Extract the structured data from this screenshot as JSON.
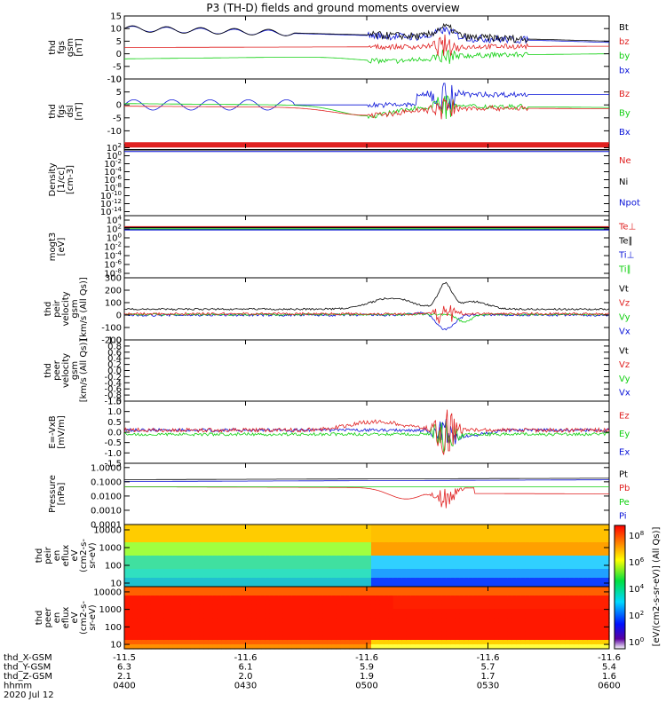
{
  "title": "P3 (TH-D) fields and ground moments overview",
  "colors": {
    "black": "#000000",
    "red": "#e02020",
    "green": "#10d010",
    "blue": "#0a14d8"
  },
  "panels": [
    {
      "ylabel": [
        "thd",
        "fgs",
        "gsm",
        "[nT]"
      ],
      "type": "line",
      "ylim": [
        -10,
        15
      ],
      "ticks": [
        "15",
        "10",
        "5",
        "0",
        "-5",
        "-10"
      ],
      "tickvals": [
        15,
        10,
        5,
        0,
        -5,
        -10
      ],
      "legend": [
        {
          "name": "Bt",
          "color": "black"
        },
        {
          "name": "bz",
          "color": "red"
        },
        {
          "name": "by",
          "color": "green"
        },
        {
          "name": "bx",
          "color": "blue"
        }
      ]
    },
    {
      "ylabel": [
        "thd",
        "fgs",
        "dsl",
        "[nT]"
      ],
      "type": "line",
      "ylim": [
        -15,
        10
      ],
      "ticks": [
        "10",
        "5",
        "0",
        "-5",
        "-10"
      ],
      "tickvals": [
        10,
        5,
        0,
        -5,
        -10
      ],
      "legend": [
        {
          "name": "Bz",
          "color": "red"
        },
        {
          "name": "By",
          "color": "green"
        },
        {
          "name": "Bx",
          "color": "blue"
        }
      ]
    },
    {
      "ylabel": [
        "Density",
        "[1/cc]",
        "[cm-3]"
      ],
      "type": "log",
      "ylim": [
        -15,
        3
      ],
      "ticks": [
        "10^2",
        "10^0",
        "10^-2",
        "10^-4",
        "10^-6",
        "10^-8",
        "10^-10",
        "10^-12",
        "10^-14"
      ],
      "tickvals": [
        2,
        0,
        -2,
        -4,
        -6,
        -8,
        -10,
        -12,
        -14
      ],
      "legend": [
        {
          "name": "Ne",
          "color": "red"
        },
        {
          "name": "Ni",
          "color": "black"
        },
        {
          "name": "Npot",
          "color": "blue"
        }
      ]
    },
    {
      "ylabel": [
        "mogt3",
        "[eV]"
      ],
      "type": "log",
      "ylim": [
        -9,
        5
      ],
      "ticks": [
        "10^4",
        "10^2",
        "10^0",
        "10^-2",
        "10^-4",
        "10^-6",
        "10^-8"
      ],
      "tickvals": [
        4,
        2,
        0,
        -2,
        -4,
        -6,
        -8
      ],
      "legend": [
        {
          "name": "Te⊥",
          "color": "red"
        },
        {
          "name": "Te∥",
          "color": "black"
        },
        {
          "name": "Ti⊥",
          "color": "blue"
        },
        {
          "name": "Ti∥",
          "color": "green"
        }
      ]
    },
    {
      "ylabel": [
        "thd",
        "peir",
        "velocity",
        "gsm",
        "[km/s (All Qs)]"
      ],
      "type": "line",
      "ylim": [
        -200,
        300
      ],
      "ticks": [
        "300",
        "200",
        "100",
        "0",
        "-100",
        "-200"
      ],
      "tickvals": [
        300,
        200,
        100,
        0,
        -100,
        -200
      ],
      "legend": [
        {
          "name": "Vt",
          "color": "black"
        },
        {
          "name": "Vz",
          "color": "red"
        },
        {
          "name": "Vy",
          "color": "green"
        },
        {
          "name": "Vx",
          "color": "blue"
        }
      ]
    },
    {
      "ylabel": [
        "thd",
        "peer",
        "velocity",
        "gsm",
        "[km/s (All Qs)]"
      ],
      "type": "line",
      "ylim": [
        -1,
        1
      ],
      "ticks": [
        "1.0",
        "0.8",
        "0.6",
        "0.4",
        "0.2",
        "0.0",
        "-0.2",
        "-0.4",
        "-0.6",
        "-0.8",
        "-1.0"
      ],
      "tickvals": [
        1,
        0.8,
        0.6,
        0.4,
        0.2,
        0,
        -0.2,
        -0.4,
        -0.6,
        -0.8,
        -1
      ],
      "legend": [
        {
          "name": "Vt",
          "color": "black"
        },
        {
          "name": "Vz",
          "color": "red"
        },
        {
          "name": "Vy",
          "color": "green"
        },
        {
          "name": "Vx",
          "color": "blue"
        }
      ]
    },
    {
      "ylabel": [
        "E=-VxB",
        "[mV/m]"
      ],
      "type": "line",
      "ylim": [
        -1.5,
        1.5
      ],
      "ticks": [
        "1.5",
        "1.0",
        "0.5",
        "0.0",
        "-0.5",
        "-1.0",
        "-1.5"
      ],
      "tickvals": [
        1.5,
        1,
        0.5,
        0,
        -0.5,
        -1,
        -1.5
      ],
      "legend": [
        {
          "name": "Ez",
          "color": "red"
        },
        {
          "name": "Ey",
          "color": "green"
        },
        {
          "name": "Ex",
          "color": "blue"
        }
      ]
    },
    {
      "ylabel": [
        "Pressure",
        "[nPa]"
      ],
      "type": "log",
      "ylim": [
        -4,
        0.3
      ],
      "ticks": [
        "1.0000",
        "0.1000",
        "0.0100",
        "0.0010",
        "0.0001"
      ],
      "tickvals": [
        0,
        -1,
        -2,
        -3,
        -4
      ],
      "legend": [
        {
          "name": "Pt",
          "color": "black"
        },
        {
          "name": "Pb",
          "color": "red"
        },
        {
          "name": "Pe",
          "color": "green"
        },
        {
          "name": "Pi",
          "color": "blue"
        }
      ]
    },
    {
      "ylabel": [
        "thd",
        "peir",
        "en",
        "eflux",
        "eV",
        "(cm2-s-",
        "sr-eV)"
      ],
      "type": "spec",
      "ylim": [
        0.8,
        4.3
      ],
      "ticks": [
        "10000",
        "1000",
        "100",
        "10"
      ],
      "tickvals": [
        4,
        3,
        2,
        1
      ],
      "legend": []
    },
    {
      "ylabel": [
        "thd",
        "peer",
        "en",
        "eflux",
        "eV",
        "(cm2-s-",
        "sr-eV)"
      ],
      "type": "spec",
      "ylim": [
        0.75,
        4.3
      ],
      "ticks": [
        "10000",
        "1000",
        "100",
        "10"
      ],
      "tickvals": [
        4,
        3,
        2,
        1
      ],
      "legend": []
    }
  ],
  "colorbar": {
    "ticks": [
      "10^8",
      "10^6",
      "10^4",
      "10^2",
      "10^0"
    ],
    "label": "[eV/(cm2-s-sr-eV)] (All Qs)]"
  },
  "xaxis": {
    "label_rows": [
      "thd_X-GSM",
      "thd_Y-GSM",
      "thd_Z-GSM",
      "hhmm",
      "2020 Jul 12"
    ],
    "ticks": [
      {
        "x": "-11.5",
        "y": "6.3",
        "z": "2.1",
        "t": "0400"
      },
      {
        "x": "-11.6",
        "y": "6.1",
        "z": "2.0",
        "t": "0430"
      },
      {
        "x": "-11.6",
        "y": "5.9",
        "z": "1.9",
        "t": "0500"
      },
      {
        "x": "-11.6",
        "y": "5.7",
        "z": "1.7",
        "t": "0530"
      },
      {
        "x": "-11.6",
        "y": "5.4",
        "z": "1.6",
        "t": "0600"
      }
    ]
  }
}
